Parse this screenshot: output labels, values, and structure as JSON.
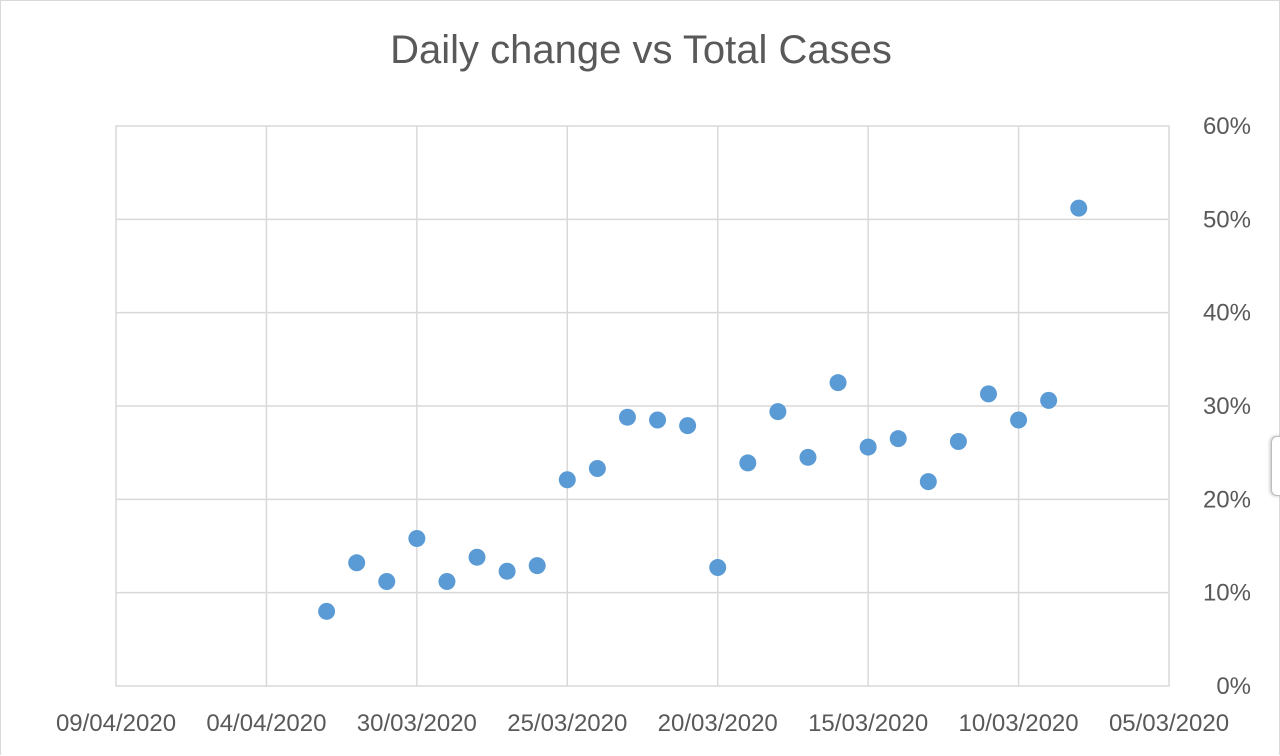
{
  "chart_data": {
    "type": "scatter",
    "title": "Daily change vs Total Cases",
    "xlabel": "",
    "ylabel": "",
    "x_axis": {
      "reversed": true,
      "min": "2020-03-05",
      "max": "2020-04-09",
      "ticks": [
        "09/04/2020",
        "04/04/2020",
        "30/03/2020",
        "25/03/2020",
        "20/03/2020",
        "15/03/2020",
        "10/03/2020",
        "05/03/2020"
      ]
    },
    "y_axis": {
      "position": "right",
      "ylim": [
        0,
        0.6
      ],
      "ticks": [
        "0%",
        "10%",
        "20%",
        "30%",
        "40%",
        "50%",
        "60%"
      ]
    },
    "grid": true,
    "legend": "none",
    "marker_color": "#5b9bd5",
    "points": [
      {
        "x": "2020-04-02",
        "y": 0.08
      },
      {
        "x": "2020-04-01",
        "y": 0.132
      },
      {
        "x": "2020-03-31",
        "y": 0.112
      },
      {
        "x": "2020-03-30",
        "y": 0.158
      },
      {
        "x": "2020-03-29",
        "y": 0.112
      },
      {
        "x": "2020-03-28",
        "y": 0.138
      },
      {
        "x": "2020-03-27",
        "y": 0.123
      },
      {
        "x": "2020-03-26",
        "y": 0.129
      },
      {
        "x": "2020-03-25",
        "y": 0.221
      },
      {
        "x": "2020-03-24",
        "y": 0.233
      },
      {
        "x": "2020-03-23",
        "y": 0.288
      },
      {
        "x": "2020-03-22",
        "y": 0.285
      },
      {
        "x": "2020-03-21",
        "y": 0.279
      },
      {
        "x": "2020-03-20",
        "y": 0.127
      },
      {
        "x": "2020-03-19",
        "y": 0.239
      },
      {
        "x": "2020-03-18",
        "y": 0.294
      },
      {
        "x": "2020-03-17",
        "y": 0.245
      },
      {
        "x": "2020-03-16",
        "y": 0.325
      },
      {
        "x": "2020-03-15",
        "y": 0.256
      },
      {
        "x": "2020-03-14",
        "y": 0.265
      },
      {
        "x": "2020-03-13",
        "y": 0.219
      },
      {
        "x": "2020-03-12",
        "y": 0.262
      },
      {
        "x": "2020-03-11",
        "y": 0.313
      },
      {
        "x": "2020-03-10",
        "y": 0.285
      },
      {
        "x": "2020-03-09",
        "y": 0.306
      },
      {
        "x": "2020-03-08",
        "y": 0.512
      }
    ]
  }
}
